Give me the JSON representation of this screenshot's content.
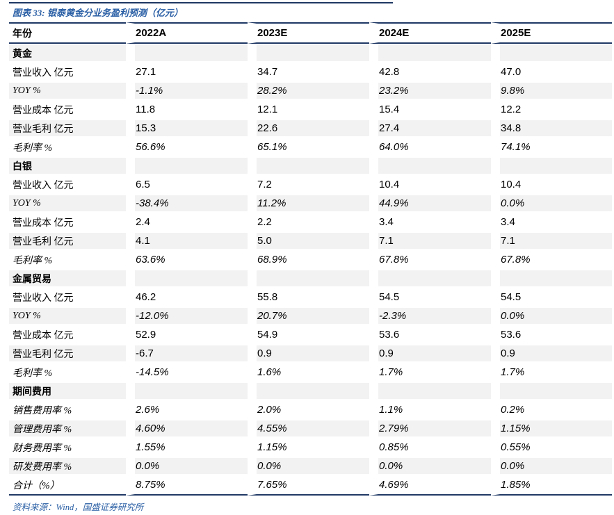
{
  "figure": {
    "title": "图表 33: 银泰黄金分业务盈利预测（亿元）",
    "source": "资料来源：Wind，国盛证券研究所"
  },
  "colors": {
    "rule_navy": "#1f3864",
    "title_blue": "#2a5fa5",
    "stripe_gray": "#f2f2f2"
  },
  "table": {
    "columns": [
      "年份",
      "2022A",
      "2023E",
      "2024E",
      "2025E"
    ],
    "rows": [
      {
        "kind": "section",
        "label": "黄金",
        "italic": false,
        "values": [
          "",
          "",
          "",
          ""
        ]
      },
      {
        "kind": "data",
        "label": "营业收入 亿元",
        "italic": false,
        "values": [
          "27.1",
          "34.7",
          "42.8",
          "47.0"
        ]
      },
      {
        "kind": "data",
        "label": "YOY %",
        "italic": true,
        "values": [
          "-1.1%",
          "28.2%",
          "23.2%",
          "9.8%"
        ]
      },
      {
        "kind": "data",
        "label": "营业成本 亿元",
        "italic": false,
        "values": [
          "11.8",
          "12.1",
          "15.4",
          "12.2"
        ]
      },
      {
        "kind": "data",
        "label": "营业毛利 亿元",
        "italic": false,
        "values": [
          "15.3",
          "22.6",
          "27.4",
          "34.8"
        ]
      },
      {
        "kind": "data",
        "label": "毛利率 %",
        "italic": true,
        "values": [
          "56.6%",
          "65.1%",
          "64.0%",
          "74.1%"
        ]
      },
      {
        "kind": "section",
        "label": "白银",
        "italic": false,
        "values": [
          "",
          "",
          "",
          ""
        ]
      },
      {
        "kind": "data",
        "label": "营业收入 亿元",
        "italic": false,
        "values": [
          "6.5",
          "7.2",
          "10.4",
          "10.4"
        ]
      },
      {
        "kind": "data",
        "label": "YOY %",
        "italic": true,
        "values": [
          "-38.4%",
          "11.2%",
          "44.9%",
          "0.0%"
        ]
      },
      {
        "kind": "data",
        "label": "营业成本 亿元",
        "italic": false,
        "values": [
          "2.4",
          "2.2",
          "3.4",
          "3.4"
        ]
      },
      {
        "kind": "data",
        "label": "营业毛利 亿元",
        "italic": false,
        "values": [
          "4.1",
          "5.0",
          "7.1",
          "7.1"
        ]
      },
      {
        "kind": "data",
        "label": "毛利率 %",
        "italic": true,
        "values": [
          "63.6%",
          "68.9%",
          "67.8%",
          "67.8%"
        ]
      },
      {
        "kind": "section",
        "label": "金属贸易",
        "italic": false,
        "values": [
          "",
          "",
          "",
          ""
        ]
      },
      {
        "kind": "data",
        "label": "营业收入 亿元",
        "italic": false,
        "values": [
          "46.2",
          "55.8",
          "54.5",
          "54.5"
        ]
      },
      {
        "kind": "data",
        "label": "YOY %",
        "italic": true,
        "values": [
          "-12.0%",
          "20.7%",
          "-2.3%",
          "0.0%"
        ]
      },
      {
        "kind": "data",
        "label": "营业成本 亿元",
        "italic": false,
        "values": [
          "52.9",
          "54.9",
          "53.6",
          "53.6"
        ]
      },
      {
        "kind": "data",
        "label": "营业毛利 亿元",
        "italic": false,
        "values": [
          "-6.7",
          "0.9",
          "0.9",
          "0.9"
        ]
      },
      {
        "kind": "data",
        "label": "毛利率 %",
        "italic": true,
        "values": [
          "-14.5%",
          "1.6%",
          "1.7%",
          "1.7%"
        ]
      },
      {
        "kind": "section",
        "label": "期间费用",
        "italic": false,
        "values": [
          "",
          "",
          "",
          ""
        ]
      },
      {
        "kind": "data",
        "label": "销售费用率 %",
        "italic": true,
        "values": [
          "2.6%",
          "2.0%",
          "1.1%",
          "0.2%"
        ]
      },
      {
        "kind": "data",
        "label": "管理费用率 %",
        "italic": true,
        "values": [
          "4.60%",
          "4.55%",
          "2.79%",
          "1.15%"
        ]
      },
      {
        "kind": "data",
        "label": "财务费用率 %",
        "italic": true,
        "values": [
          "1.55%",
          "1.15%",
          "0.85%",
          "0.55%"
        ]
      },
      {
        "kind": "data",
        "label": "研发费用率 %",
        "italic": true,
        "values": [
          "0.0%",
          "0.0%",
          "0.0%",
          "0.0%"
        ]
      },
      {
        "kind": "data",
        "label": "合计（%）",
        "italic": true,
        "values": [
          "8.75%",
          "7.65%",
          "4.69%",
          "1.85%"
        ]
      }
    ]
  }
}
